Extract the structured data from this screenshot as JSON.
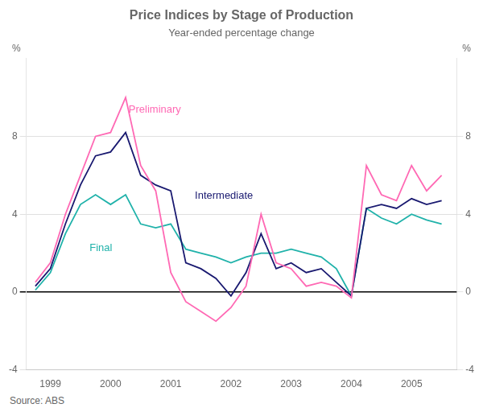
{
  "chart_data": {
    "type": "line",
    "title": "Price Indices by Stage of Production",
    "subtitle": "Year-ended percentage change",
    "source": "Source: ABS",
    "ylabel": "%",
    "y2label": "%",
    "x": [
      1998.75,
      1999.0,
      1999.25,
      1999.5,
      1999.75,
      2000.0,
      2000.25,
      2000.5,
      2000.75,
      2001.0,
      2001.25,
      2001.5,
      2001.75,
      2002.0,
      2002.25,
      2002.5,
      2002.75,
      2003.0,
      2003.25,
      2003.5,
      2003.75,
      2004.0,
      2004.25,
      2004.5,
      2004.75,
      2005.0,
      2005.25,
      2005.5
    ],
    "series": [
      {
        "name": "Preliminary",
        "color": "#ff69b4",
        "values": [
          0.5,
          1.5,
          4.0,
          6.0,
          8.0,
          8.2,
          10.0,
          6.5,
          5.2,
          1.0,
          -0.5,
          -1.0,
          -1.5,
          -0.8,
          0.3,
          4.0,
          1.5,
          1.2,
          0.3,
          0.5,
          0.3,
          -0.3,
          6.5,
          5.0,
          4.7,
          6.5,
          5.2,
          6.0
        ]
      },
      {
        "name": "Intermediate",
        "color": "#191970",
        "values": [
          0.3,
          1.2,
          3.5,
          5.5,
          7.0,
          7.2,
          8.2,
          6.0,
          5.5,
          5.2,
          1.5,
          1.2,
          0.7,
          -0.2,
          1.0,
          3.0,
          1.2,
          1.5,
          1.0,
          1.2,
          0.5,
          -0.2,
          4.3,
          4.5,
          4.3,
          4.8,
          4.5,
          4.7
        ]
      },
      {
        "name": "Final",
        "color": "#20b2aa",
        "values": [
          0.1,
          1.0,
          3.0,
          4.5,
          5.0,
          4.5,
          5.0,
          3.5,
          3.3,
          3.5,
          2.2,
          2.0,
          1.8,
          1.5,
          1.8,
          2.0,
          2.0,
          2.2,
          2.0,
          1.8,
          1.2,
          -0.2,
          4.3,
          3.8,
          3.5,
          4.0,
          3.7,
          3.5
        ]
      }
    ],
    "annotations": [
      {
        "text": "Preliminary",
        "x": 2000.3,
        "y": 9.2,
        "color": "#ff69b4"
      },
      {
        "text": "Intermediate",
        "x": 2001.4,
        "y": 4.8,
        "color": "#191970"
      },
      {
        "text": "Final",
        "x": 1999.65,
        "y": 2.1,
        "color": "#20b2aa"
      }
    ],
    "xlim": [
      1998.6,
      2005.75
    ],
    "xticks": [
      1999,
      2000,
      2001,
      2002,
      2003,
      2004,
      2005
    ],
    "ylim": [
      -4,
      12
    ],
    "yticks": [
      -4,
      0,
      4,
      8
    ],
    "y2lim": [
      -4,
      12
    ],
    "y2ticks": [
      -4,
      0,
      4,
      8
    ],
    "grid": true,
    "legend": false
  }
}
